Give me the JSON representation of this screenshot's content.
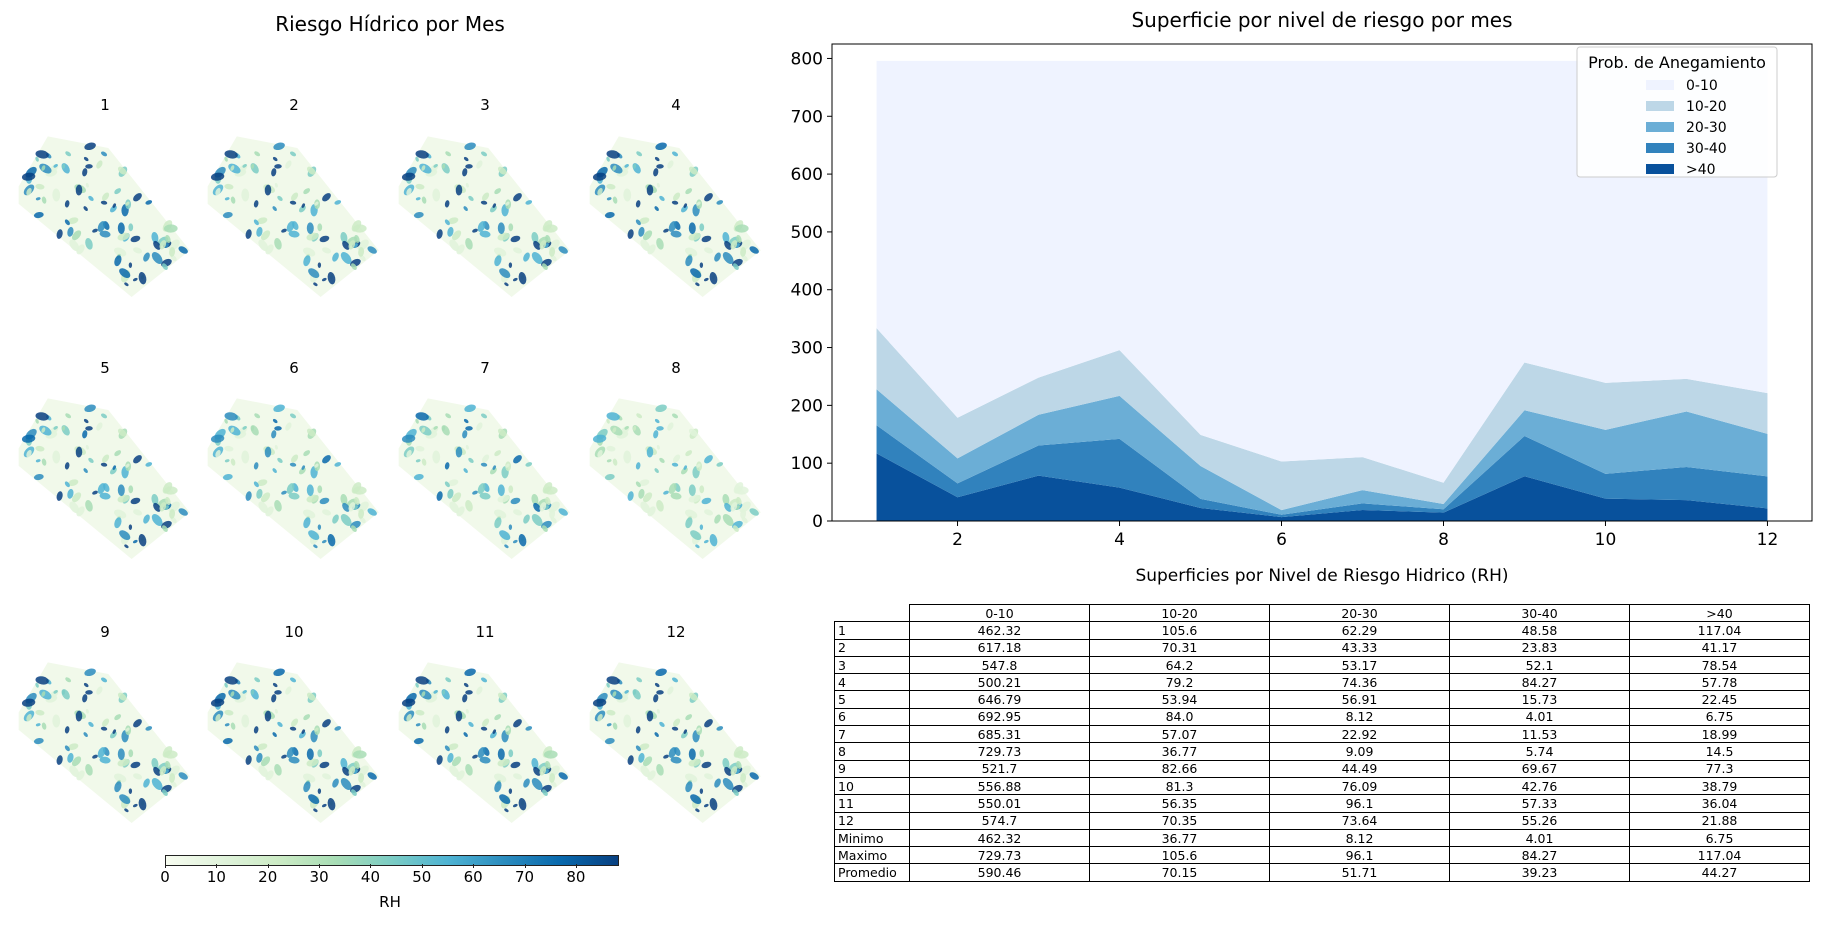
{
  "left_panel": {
    "title": "Riesgo Hídrico por Mes",
    "months": [
      "1",
      "2",
      "3",
      "4",
      "5",
      "6",
      "7",
      "8",
      "9",
      "10",
      "11",
      "12"
    ],
    "colorbar": {
      "label": "RH",
      "ticks": [
        "0",
        "10",
        "20",
        "30",
        "40",
        "50",
        "60",
        "70",
        "80"
      ],
      "range": [
        0,
        88
      ],
      "colormap": "GnBu"
    }
  },
  "chart_data": [
    {
      "type": "area",
      "stacked": true,
      "title": "Superficie por nivel de riesgo por mes",
      "xlabel": "",
      "ylabel": "",
      "x": [
        1,
        2,
        3,
        4,
        5,
        6,
        7,
        8,
        9,
        10,
        11,
        12
      ],
      "xticks": [
        "2",
        "4",
        "6",
        "8",
        "10",
        "12"
      ],
      "yticks": [
        "0",
        "100",
        "200",
        "300",
        "400",
        "500",
        "600",
        "700",
        "800"
      ],
      "xlim": [
        0.45,
        12.55
      ],
      "ylim": [
        0,
        825
      ],
      "grid": false,
      "legend": {
        "title": "Prob. de Anegamiento",
        "position": "top-right"
      },
      "series": [
        {
          "name": ">40",
          "color": "#08519c",
          "values": [
            117.04,
            41.17,
            78.54,
            57.78,
            22.45,
            6.75,
            18.99,
            14.5,
            77.3,
            38.79,
            36.04,
            21.88
          ]
        },
        {
          "name": "30-40",
          "color": "#3182bd",
          "values": [
            48.58,
            23.83,
            52.1,
            84.27,
            15.73,
            4.01,
            11.53,
            5.74,
            69.67,
            42.76,
            57.33,
            55.26
          ]
        },
        {
          "name": "20-30",
          "color": "#6baed6",
          "values": [
            62.29,
            43.33,
            53.17,
            74.36,
            56.91,
            8.12,
            22.92,
            9.09,
            44.49,
            76.09,
            96.1,
            73.64
          ]
        },
        {
          "name": "10-20",
          "color": "#bdd7e7",
          "values": [
            105.6,
            70.31,
            64.2,
            79.2,
            53.94,
            84.0,
            57.07,
            36.77,
            82.66,
            81.3,
            56.35,
            70.35
          ]
        },
        {
          "name": "0-10",
          "color": "#eff3ff",
          "values": [
            462.32,
            617.18,
            547.8,
            500.21,
            646.79,
            692.95,
            685.31,
            729.73,
            521.7,
            556.88,
            550.01,
            574.7
          ]
        }
      ]
    },
    {
      "type": "table",
      "title": "Superficies por Nivel de Riesgo Hidrico (RH)",
      "columns": [
        "0-10",
        "10-20",
        "20-30",
        "30-40",
        ">40"
      ],
      "rows": [
        {
          "label": "1",
          "values": [
            "462.32",
            "105.6",
            "62.29",
            "48.58",
            "117.04"
          ]
        },
        {
          "label": "2",
          "values": [
            "617.18",
            "70.31",
            "43.33",
            "23.83",
            "41.17"
          ]
        },
        {
          "label": "3",
          "values": [
            "547.8",
            "64.2",
            "53.17",
            "52.1",
            "78.54"
          ]
        },
        {
          "label": "4",
          "values": [
            "500.21",
            "79.2",
            "74.36",
            "84.27",
            "57.78"
          ]
        },
        {
          "label": "5",
          "values": [
            "646.79",
            "53.94",
            "56.91",
            "15.73",
            "22.45"
          ]
        },
        {
          "label": "6",
          "values": [
            "692.95",
            "84.0",
            "8.12",
            "4.01",
            "6.75"
          ]
        },
        {
          "label": "7",
          "values": [
            "685.31",
            "57.07",
            "22.92",
            "11.53",
            "18.99"
          ]
        },
        {
          "label": "8",
          "values": [
            "729.73",
            "36.77",
            "9.09",
            "5.74",
            "14.5"
          ]
        },
        {
          "label": "9",
          "values": [
            "521.7",
            "82.66",
            "44.49",
            "69.67",
            "77.3"
          ]
        },
        {
          "label": "10",
          "values": [
            "556.88",
            "81.3",
            "76.09",
            "42.76",
            "38.79"
          ]
        },
        {
          "label": "11",
          "values": [
            "550.01",
            "56.35",
            "96.1",
            "57.33",
            "36.04"
          ]
        },
        {
          "label": "12",
          "values": [
            "574.7",
            "70.35",
            "73.64",
            "55.26",
            "21.88"
          ]
        },
        {
          "label": "Minimo",
          "values": [
            "462.32",
            "36.77",
            "8.12",
            "4.01",
            "6.75"
          ]
        },
        {
          "label": "Maximo",
          "values": [
            "729.73",
            "105.6",
            "96.1",
            "84.27",
            "117.04"
          ]
        },
        {
          "label": "Promedio",
          "values": [
            "590.46",
            "70.15",
            "51.71",
            "39.23",
            "44.27"
          ]
        }
      ]
    }
  ]
}
